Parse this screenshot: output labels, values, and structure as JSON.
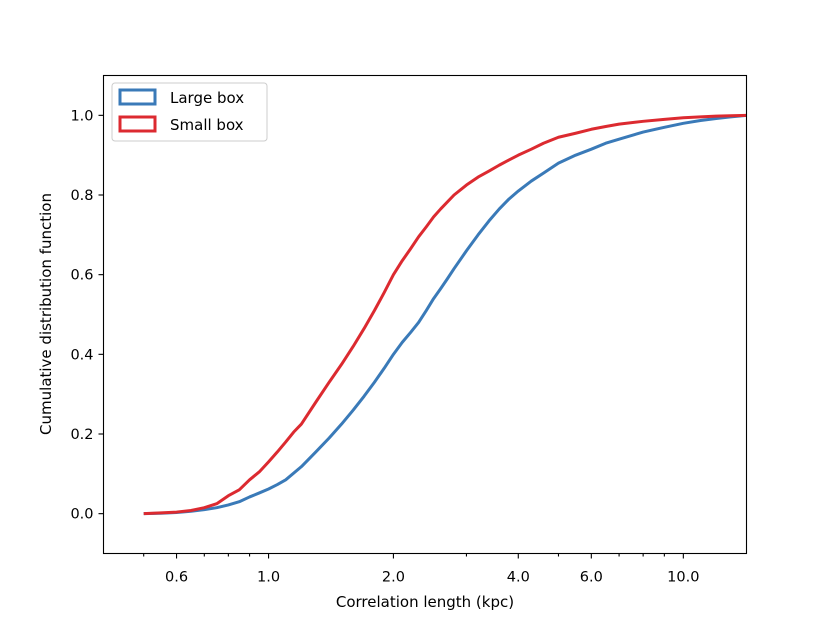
{
  "chart_data": {
    "type": "line",
    "subtype": "step-cdf",
    "xlabel": "Correlation length (kpc)",
    "ylabel": "Cumulative distribution function",
    "xscale": "log",
    "xlim": [
      0.4,
      14.2
    ],
    "ylim": [
      -0.1,
      1.1
    ],
    "xticks": [
      0.6,
      1.0,
      2.0,
      4.0,
      6.0,
      10.0
    ],
    "xtick_labels": [
      "0.6",
      "1.0",
      "2.0",
      "4.0",
      "6.0",
      "10.0"
    ],
    "xticks_minor": [
      0.5,
      0.7,
      0.8,
      0.9,
      3.0,
      5.0,
      7.0,
      8.0,
      9.0
    ],
    "yticks": [
      0.0,
      0.2,
      0.4,
      0.6,
      0.8,
      1.0
    ],
    "ytick_labels": [
      "0.0",
      "0.2",
      "0.4",
      "0.6",
      "0.8",
      "1.0"
    ],
    "grid": false,
    "legend_position": "upper-left",
    "series": [
      {
        "name": "Large box",
        "color": "#3a7ab8",
        "x": [
          0.5,
          0.55,
          0.6,
          0.65,
          0.7,
          0.75,
          0.8,
          0.85,
          0.9,
          0.95,
          1.0,
          1.05,
          1.1,
          1.2,
          1.3,
          1.4,
          1.5,
          1.6,
          1.7,
          1.8,
          1.9,
          2.0,
          2.1,
          2.2,
          2.3,
          2.4,
          2.5,
          2.6,
          2.7,
          2.8,
          3.0,
          3.2,
          3.4,
          3.6,
          3.8,
          4.0,
          4.3,
          4.6,
          5.0,
          5.5,
          6.0,
          6.5,
          7.0,
          8.0,
          9.0,
          10.0,
          11.0,
          12.0,
          13.0,
          14.2
        ],
        "y": [
          0.0,
          0.001,
          0.003,
          0.006,
          0.01,
          0.015,
          0.022,
          0.03,
          0.042,
          0.052,
          0.062,
          0.073,
          0.085,
          0.118,
          0.155,
          0.19,
          0.225,
          0.26,
          0.295,
          0.33,
          0.365,
          0.4,
          0.43,
          0.455,
          0.48,
          0.51,
          0.54,
          0.565,
          0.59,
          0.615,
          0.66,
          0.7,
          0.735,
          0.765,
          0.79,
          0.81,
          0.835,
          0.855,
          0.88,
          0.9,
          0.915,
          0.93,
          0.94,
          0.958,
          0.97,
          0.98,
          0.987,
          0.992,
          0.996,
          1.0
        ]
      },
      {
        "name": "Small box",
        "color": "#dc2a30",
        "x": [
          0.5,
          0.55,
          0.6,
          0.65,
          0.7,
          0.75,
          0.8,
          0.85,
          0.9,
          0.95,
          1.0,
          1.05,
          1.1,
          1.15,
          1.2,
          1.3,
          1.4,
          1.5,
          1.6,
          1.7,
          1.8,
          1.9,
          2.0,
          2.1,
          2.2,
          2.3,
          2.4,
          2.5,
          2.6,
          2.8,
          3.0,
          3.2,
          3.4,
          3.6,
          3.8,
          4.0,
          4.3,
          4.6,
          5.0,
          5.5,
          6.0,
          6.5,
          7.0,
          8.0,
          9.0,
          10.0,
          11.0,
          12.0,
          13.0,
          14.2
        ],
        "y": [
          0.0,
          0.002,
          0.004,
          0.008,
          0.015,
          0.025,
          0.045,
          0.06,
          0.085,
          0.105,
          0.13,
          0.155,
          0.18,
          0.205,
          0.225,
          0.28,
          0.33,
          0.375,
          0.42,
          0.465,
          0.51,
          0.555,
          0.6,
          0.635,
          0.665,
          0.695,
          0.72,
          0.745,
          0.765,
          0.8,
          0.825,
          0.845,
          0.86,
          0.875,
          0.888,
          0.9,
          0.915,
          0.93,
          0.945,
          0.955,
          0.965,
          0.972,
          0.978,
          0.985,
          0.99,
          0.994,
          0.996,
          0.998,
          0.999,
          1.0
        ]
      }
    ]
  }
}
